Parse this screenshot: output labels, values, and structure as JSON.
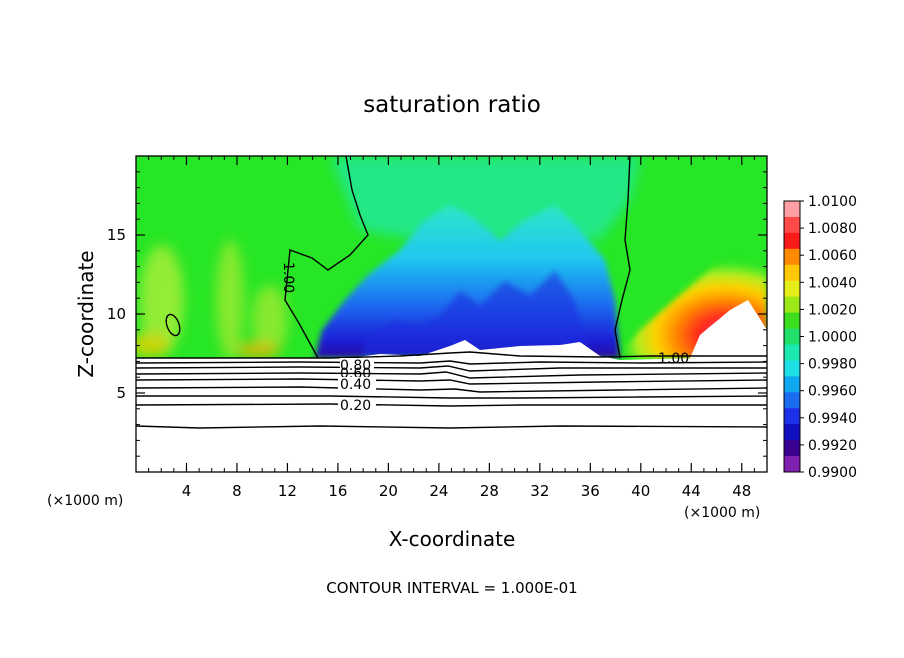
{
  "chart_data": {
    "type": "heatmap",
    "title": "saturation ratio",
    "xlabel": "X-coordinate",
    "ylabel": "Z-coordinate",
    "x_unit_left": "(×1000 m)",
    "x_unit_right": "(×1000 m)",
    "footer": "CONTOUR INTERVAL = 1.000E-01",
    "xlim": [
      0,
      50
    ],
    "ylim": [
      0,
      20
    ],
    "xticks": [
      4,
      8,
      12,
      16,
      20,
      24,
      28,
      32,
      36,
      40,
      44,
      48
    ],
    "yticks": [
      5,
      10,
      15
    ],
    "colorbar": {
      "ticks": [
        "1.0100",
        "1.0080",
        "1.0060",
        "1.0040",
        "1.0020",
        "1.0000",
        "0.9980",
        "0.9960",
        "0.9940",
        "0.9920",
        "0.9900"
      ],
      "colors": [
        "#ff9fa4",
        "#ff4848",
        "#ff1a1a",
        "#ff8a00",
        "#ffc800",
        "#e6ee1a",
        "#9ee81a",
        "#3cdc1e",
        "#22e06a",
        "#1ce8b0",
        "#1ce0e6",
        "#10a8f0",
        "#1a6cf0",
        "#1e30e8",
        "#1010c0",
        "#3a0090",
        "#8020b0"
      ]
    },
    "contour_labels": [
      "1.00",
      "1.00",
      "0.80",
      "0.60",
      "0.40",
      "0.20"
    ],
    "colors": {
      "green_base": "#27e625",
      "cyan": "#22e8e0",
      "blue": "#1a5cf0",
      "red": "#ff2a2a",
      "white_region": "#ffffff"
    }
  }
}
